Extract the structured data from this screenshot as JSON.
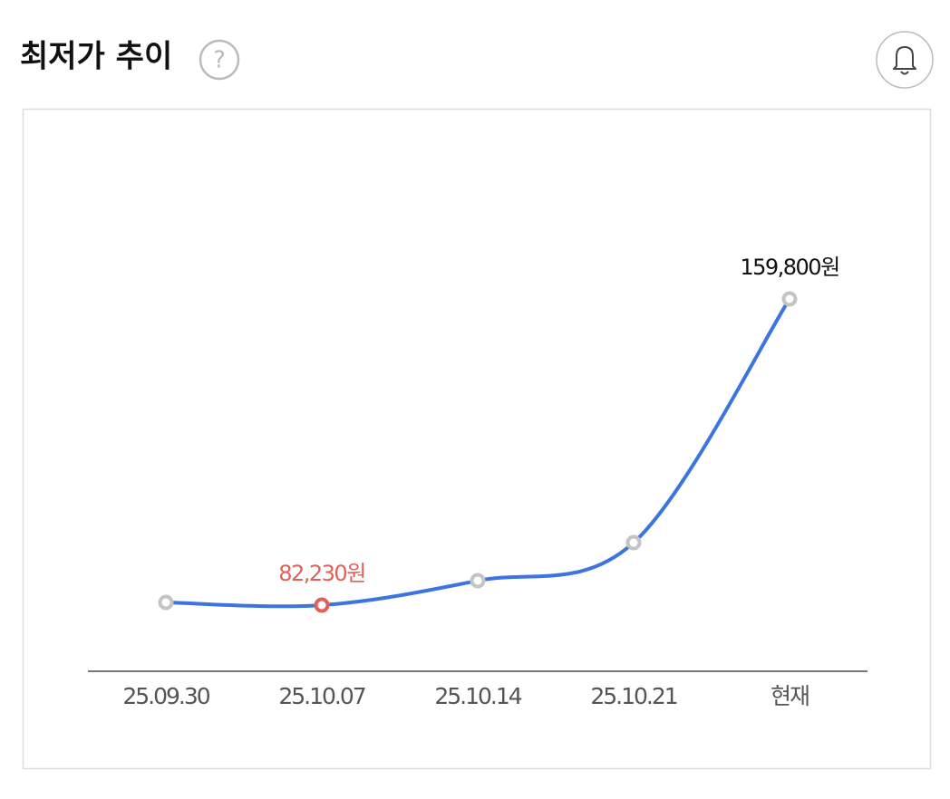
{
  "header": {
    "title": "최저가 추이"
  },
  "chart_data": {
    "type": "line",
    "categories": [
      "25.09.30",
      "25.10.07",
      "25.10.14",
      "25.10.21",
      "현재"
    ],
    "values": [
      82920,
      82230,
      88430,
      98060,
      159800
    ],
    "value_labels": [
      null,
      "82,230원",
      null,
      null,
      "159,800원"
    ],
    "color": "#3d74e0",
    "marker_color": "#c4c4c4",
    "highlight_color": "#e0605a"
  }
}
